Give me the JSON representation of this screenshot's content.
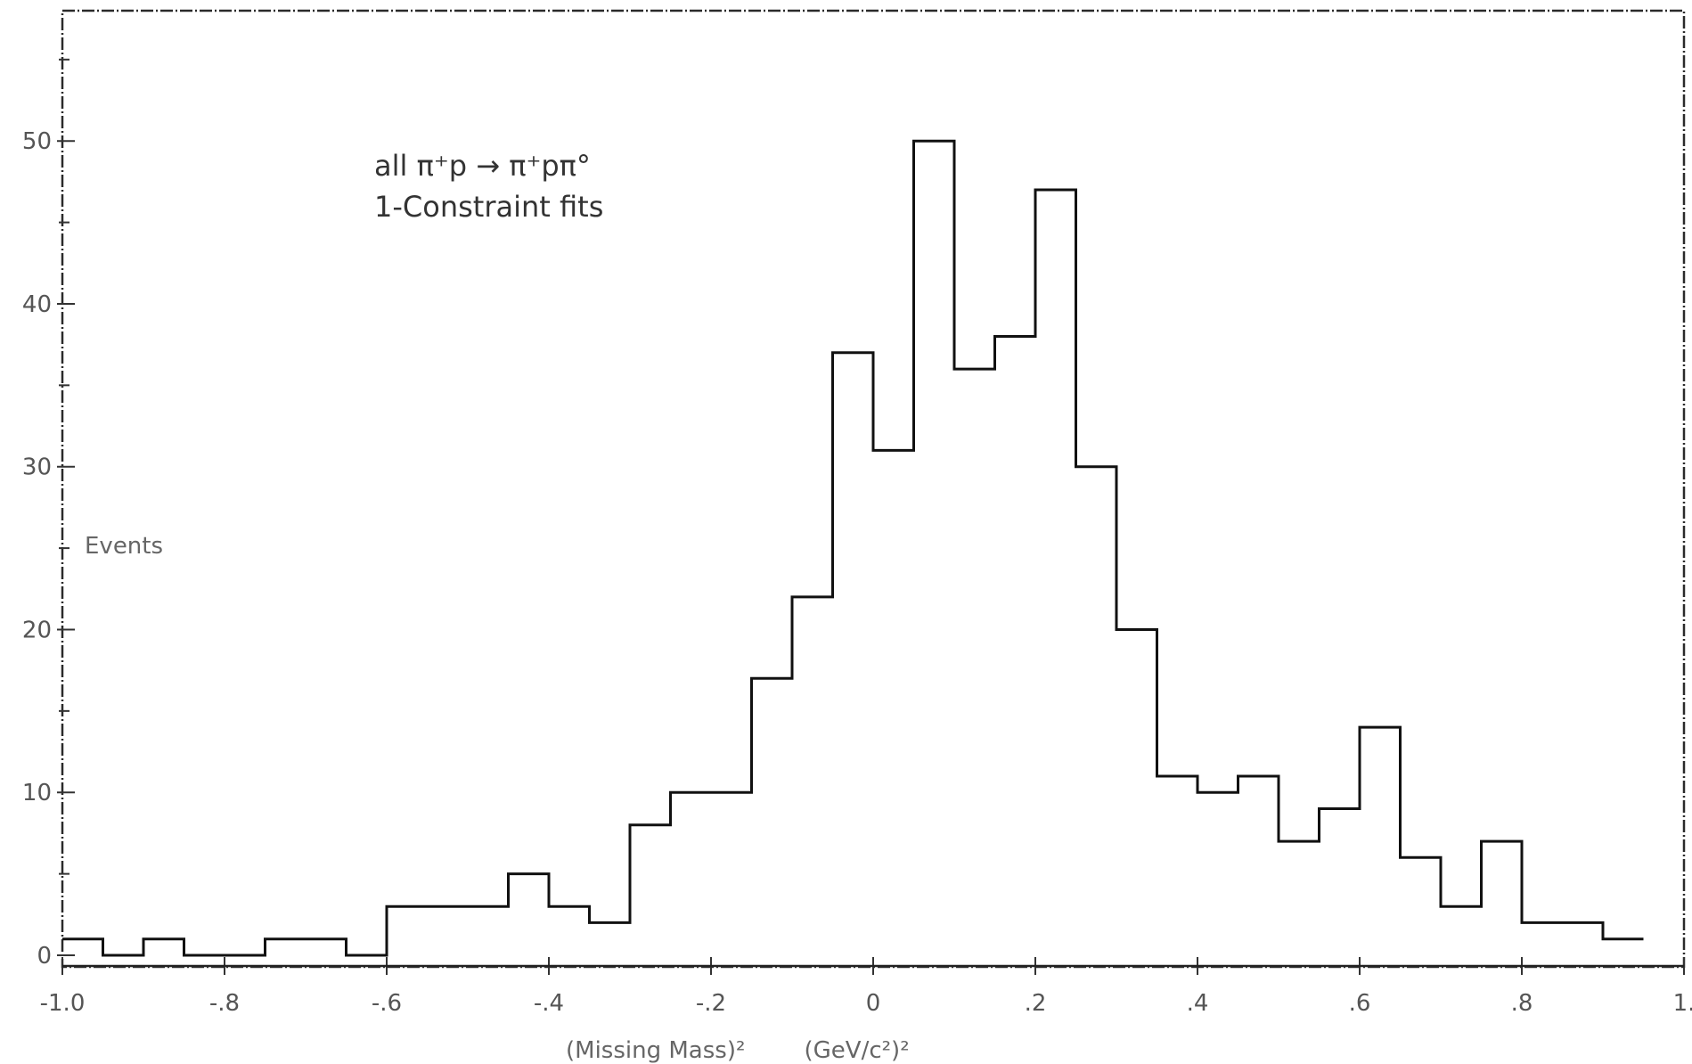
{
  "chart_data": {
    "type": "histogram",
    "title": "",
    "annotations": [
      "all π⁺p → π⁺pπ°",
      "1-Constraint fits"
    ],
    "xlabel": "(Missing Mass)²        (GeV/c²)²",
    "ylabel": "Events",
    "xlim": [
      -1.0,
      1.0
    ],
    "ylim": [
      0,
      58
    ],
    "x_ticks": [
      {
        "value": -1.0,
        "label": "-1.0"
      },
      {
        "value": -0.8,
        "label": "-.8"
      },
      {
        "value": -0.6,
        "label": "-.6"
      },
      {
        "value": -0.4,
        "label": "-.4"
      },
      {
        "value": -0.2,
        "label": "-.2"
      },
      {
        "value": 0.0,
        "label": "0"
      },
      {
        "value": 0.2,
        "label": ".2"
      },
      {
        "value": 0.4,
        "label": ".4"
      },
      {
        "value": 0.6,
        "label": ".6"
      },
      {
        "value": 0.8,
        "label": ".8"
      },
      {
        "value": 1.0,
        "label": "1."
      }
    ],
    "y_ticks": [
      {
        "value": 0,
        "label": "0"
      },
      {
        "value": 10,
        "label": "10"
      },
      {
        "value": 20,
        "label": "20"
      },
      {
        "value": 30,
        "label": "30"
      },
      {
        "value": 40,
        "label": "40"
      },
      {
        "value": 50,
        "label": "50"
      }
    ],
    "bin_width": 0.05,
    "bin_edges_start": -1.0,
    "counts": [
      1,
      0,
      1,
      0,
      0,
      1,
      1,
      0,
      3,
      3,
      3,
      5,
      3,
      2,
      8,
      10,
      10,
      17,
      22,
      37,
      31,
      50,
      36,
      38,
      47,
      30,
      20,
      11,
      10,
      11,
      7,
      9,
      14,
      6,
      3,
      7,
      2,
      2,
      1
    ],
    "grid": false,
    "legend": "none"
  }
}
